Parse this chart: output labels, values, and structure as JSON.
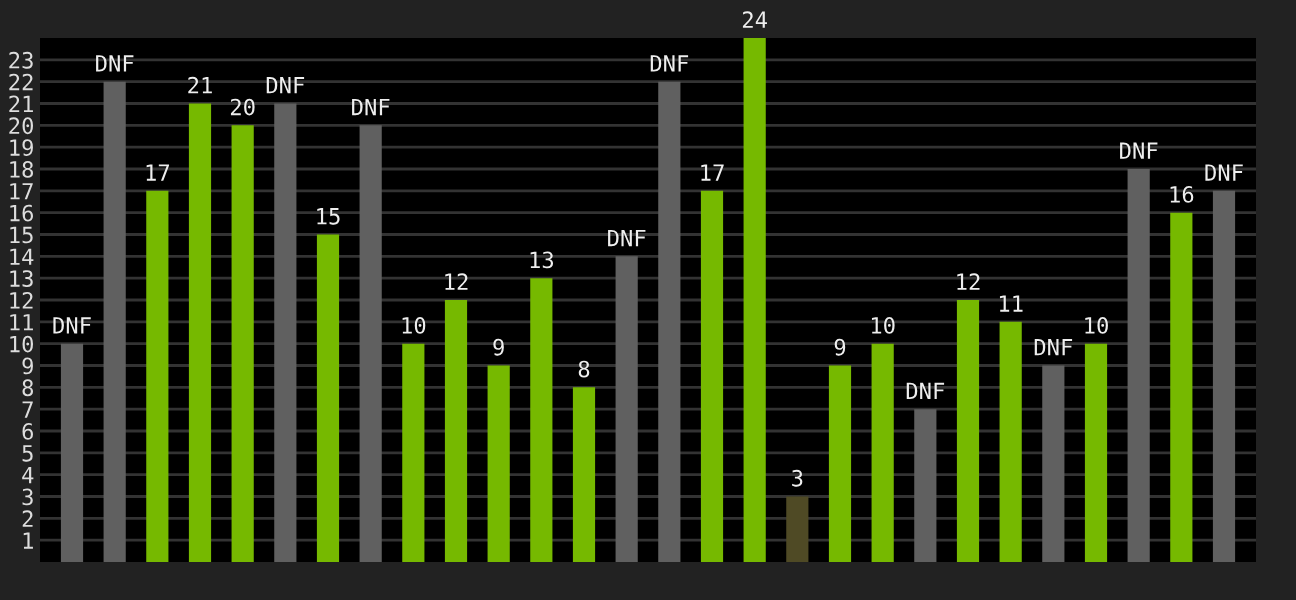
{
  "chart_data": {
    "type": "bar",
    "categories": [
      null,
      null,
      null,
      null,
      null,
      null,
      null,
      null,
      null,
      null,
      null,
      null,
      null,
      null,
      null,
      null,
      null,
      null,
      null,
      null,
      null,
      null,
      null,
      null,
      null,
      null,
      null,
      null
    ],
    "values": [
      10,
      22,
      17,
      21,
      20,
      21,
      15,
      20,
      10,
      12,
      9,
      13,
      8,
      14,
      22,
      17,
      24,
      3,
      9,
      10,
      7,
      12,
      11,
      9,
      10,
      18,
      16,
      17
    ],
    "value_labels": [
      "DNF",
      "DNF",
      "17",
      "21",
      "20",
      "DNF",
      "15",
      "DNF",
      "10",
      "12",
      "9",
      "13",
      "8",
      "DNF",
      "DNF",
      "17",
      "24",
      "3",
      "9",
      "10",
      "DNF",
      "12",
      "11",
      "DNF",
      "10",
      "DNF",
      "16",
      "DNF"
    ],
    "colors": [
      "#606060",
      "#606060",
      "#76b900",
      "#76b900",
      "#76b900",
      "#606060",
      "#76b900",
      "#606060",
      "#76b900",
      "#76b900",
      "#76b900",
      "#76b900",
      "#76b900",
      "#606060",
      "#606060",
      "#76b900",
      "#76b900",
      "#4f4a25",
      "#76b900",
      "#76b900",
      "#606060",
      "#76b900",
      "#76b900",
      "#606060",
      "#76b900",
      "#606060",
      "#76b900",
      "#606060"
    ],
    "ylim": [
      0,
      24
    ],
    "yticks": [
      1,
      2,
      3,
      4,
      5,
      6,
      7,
      8,
      9,
      10,
      11,
      12,
      13,
      14,
      15,
      16,
      17,
      18,
      19,
      20,
      21,
      22,
      23
    ],
    "grid": "y",
    "tick_labels": "y"
  }
}
